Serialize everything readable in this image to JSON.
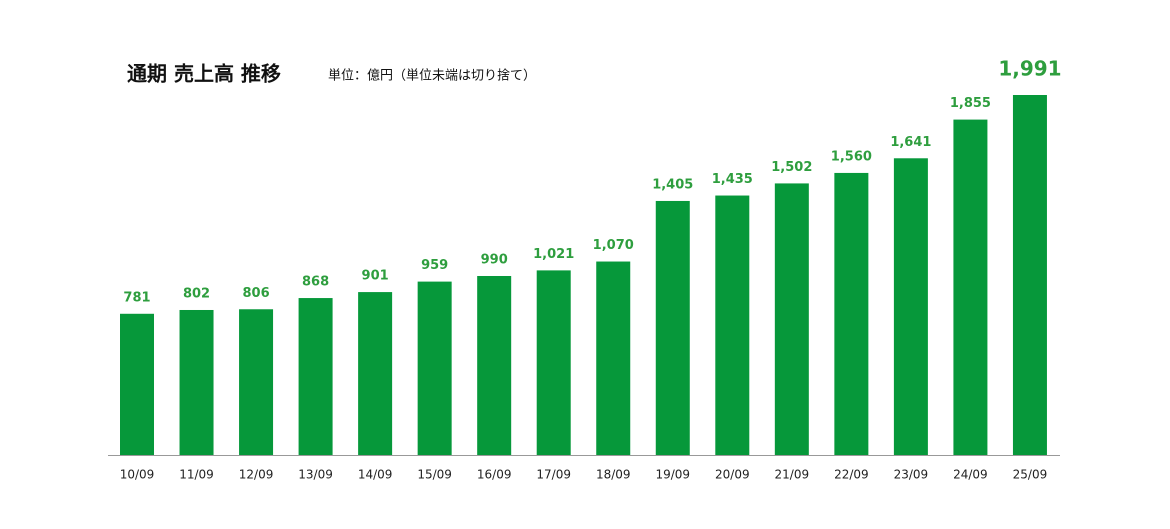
{
  "chart_data": {
    "type": "bar",
    "title": "通期 売上高 推移",
    "subtitle": "単位：億円（単位未端は切り捨て）",
    "categories": [
      "10/09",
      "11/09",
      "12/09",
      "13/09",
      "14/09",
      "15/09",
      "16/09",
      "17/09",
      "18/09",
      "19/09",
      "20/09",
      "21/09",
      "22/09",
      "23/09",
      "24/09",
      "25/09"
    ],
    "values": [
      781,
      802,
      806,
      868,
      901,
      959,
      990,
      1021,
      1070,
      1405,
      1435,
      1502,
      1560,
      1641,
      1855,
      1991
    ],
    "value_labels": [
      "781",
      "802",
      "806",
      "868",
      "901",
      "959",
      "990",
      "1,021",
      "1,070",
      "1,405",
      "1,435",
      "1,502",
      "1,560",
      "1,641",
      "1,855",
      "1,991"
    ],
    "color": "#06983a",
    "label_color": "#2e9e3e"
  }
}
